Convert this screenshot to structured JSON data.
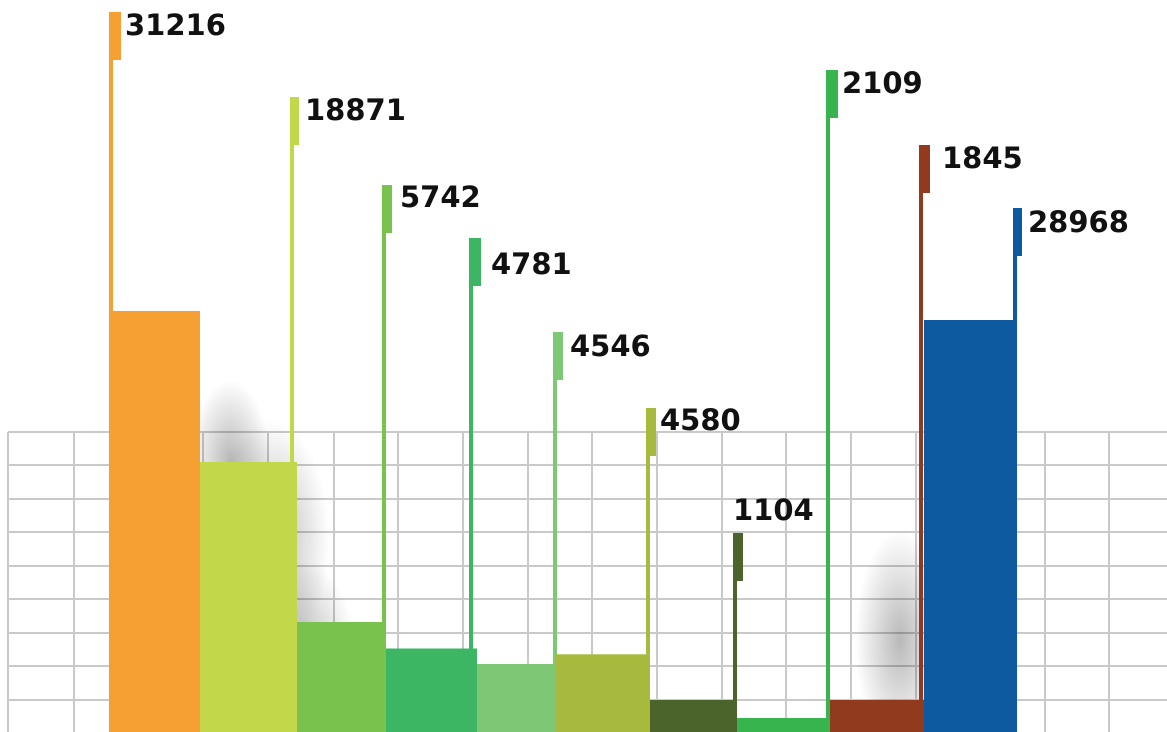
{
  "chart_data": {
    "type": "bar",
    "grid": true,
    "series": [
      {
        "values": [
          31216,
          18871,
          5742,
          4781,
          4546,
          4580,
          1104,
          2109,
          1845,
          28968
        ],
        "colors": [
          "#F6A033",
          "#C2D84A",
          "#7AC24E",
          "#3DB663",
          "#7DC775",
          "#A8BA3E",
          "#4A642C",
          "#37B44E",
          "#923A1E",
          "#0D5AA0"
        ]
      }
    ],
    "labels": [
      "31216",
      "18871",
      "5742",
      "4781",
      "4546",
      "4580",
      "1104",
      "2109",
      "1845",
      "28968"
    ]
  }
}
